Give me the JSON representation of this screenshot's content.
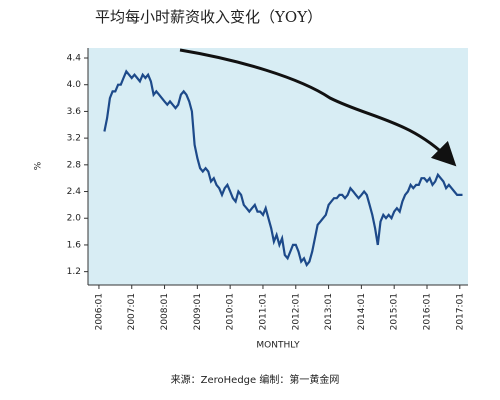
{
  "chart_data": {
    "type": "line",
    "title": "平均每小时薪资收入变化（YOY）",
    "y_label": "%",
    "x_label": "MONTHLY",
    "source": "来源：ZeroHedge    编制：第一黄金网",
    "color": "#1d4a8a",
    "background": "#d8edf4",
    "x": [
      "2006-03",
      "2006-04",
      "2006-05",
      "2006-06",
      "2006-07",
      "2006-08",
      "2006-09",
      "2006-10",
      "2006-11",
      "2006-12",
      "2007-01",
      "2007-02",
      "2007-03",
      "2007-04",
      "2007-05",
      "2007-06",
      "2007-07",
      "2007-08",
      "2007-09",
      "2007-10",
      "2007-11",
      "2007-12",
      "2008-01",
      "2008-02",
      "2008-03",
      "2008-04",
      "2008-05",
      "2008-06",
      "2008-07",
      "2008-08",
      "2008-09",
      "2008-10",
      "2008-11",
      "2008-12",
      "2009-01",
      "2009-02",
      "2009-03",
      "2009-04",
      "2009-05",
      "2009-06",
      "2009-07",
      "2009-08",
      "2009-09",
      "2009-10",
      "2009-11",
      "2009-12",
      "2010-01",
      "2010-02",
      "2010-03",
      "2010-04",
      "2010-05",
      "2010-06",
      "2010-07",
      "2010-08",
      "2010-09",
      "2010-10",
      "2010-11",
      "2010-12",
      "2011-01",
      "2011-02",
      "2011-03",
      "2011-04",
      "2011-05",
      "2011-06",
      "2011-07",
      "2011-08",
      "2011-09",
      "2011-10",
      "2011-11",
      "2011-12",
      "2012-01",
      "2012-02",
      "2012-03",
      "2012-04",
      "2012-05",
      "2012-06",
      "2012-07",
      "2012-08",
      "2012-09",
      "2012-10",
      "2012-11",
      "2012-12",
      "2013-01",
      "2013-02",
      "2013-03",
      "2013-04",
      "2013-05",
      "2013-06",
      "2013-07",
      "2013-08",
      "2013-09",
      "2013-10",
      "2013-11",
      "2013-12",
      "2014-01",
      "2014-02",
      "2014-03",
      "2014-04",
      "2014-05",
      "2014-06",
      "2014-07",
      "2014-08",
      "2014-09",
      "2014-10",
      "2014-11",
      "2014-12",
      "2015-01",
      "2015-02",
      "2015-03",
      "2015-04",
      "2015-05",
      "2015-06",
      "2015-07",
      "2015-08",
      "2015-09",
      "2015-10",
      "2015-11",
      "2015-12",
      "2016-01",
      "2016-02",
      "2016-03",
      "2016-04",
      "2016-05",
      "2016-06",
      "2016-07",
      "2016-08",
      "2016-09",
      "2016-10",
      "2016-11",
      "2016-12",
      "2017-01",
      "2017-02"
    ],
    "values": [
      3.3,
      3.5,
      3.8,
      3.9,
      3.9,
      4.0,
      4.0,
      4.1,
      4.2,
      4.15,
      4.1,
      4.15,
      4.1,
      4.05,
      4.15,
      4.1,
      4.15,
      4.05,
      3.85,
      3.9,
      3.85,
      3.8,
      3.75,
      3.7,
      3.75,
      3.7,
      3.65,
      3.7,
      3.85,
      3.9,
      3.85,
      3.75,
      3.6,
      3.1,
      2.9,
      2.75,
      2.7,
      2.75,
      2.7,
      2.55,
      2.6,
      2.5,
      2.45,
      2.35,
      2.45,
      2.5,
      2.4,
      2.3,
      2.25,
      2.4,
      2.35,
      2.2,
      2.15,
      2.1,
      2.15,
      2.2,
      2.1,
      2.1,
      2.05,
      2.15,
      2.0,
      1.85,
      1.65,
      1.75,
      1.6,
      1.7,
      1.45,
      1.4,
      1.5,
      1.6,
      1.6,
      1.5,
      1.35,
      1.4,
      1.3,
      1.35,
      1.5,
      1.7,
      1.9,
      1.95,
      2.0,
      2.05,
      2.2,
      2.25,
      2.3,
      2.3,
      2.35,
      2.35,
      2.3,
      2.35,
      2.45,
      2.4,
      2.35,
      2.3,
      2.35,
      2.4,
      2.35,
      2.2,
      2.05,
      1.85,
      1.6,
      1.95,
      2.05,
      2.0,
      2.05,
      2.0,
      2.1,
      2.15,
      2.1,
      2.25,
      2.35,
      2.4,
      2.5,
      2.45,
      2.5,
      2.5,
      2.6,
      2.6,
      2.55,
      2.6,
      2.5,
      2.55,
      2.65,
      2.6,
      2.55,
      2.45,
      2.5,
      2.45,
      2.4,
      2.35,
      2.35,
      2.35
    ],
    "xlim": [
      "2005-09",
      "2017-04"
    ],
    "xticks": [
      {
        "value": "2006-01",
        "label": "2006:01"
      },
      {
        "value": "2007-01",
        "label": "2007:01"
      },
      {
        "value": "2008-01",
        "label": "2008:01"
      },
      {
        "value": "2009-01",
        "label": "2009:01"
      },
      {
        "value": "2010-01",
        "label": "2010:01"
      },
      {
        "value": "2011-01",
        "label": "2011:01"
      },
      {
        "value": "2012-01",
        "label": "2012:01"
      },
      {
        "value": "2013-01",
        "label": "2013:01"
      },
      {
        "value": "2014-01",
        "label": "2014:01"
      },
      {
        "value": "2015-01",
        "label": "2015:01"
      },
      {
        "value": "2016-01",
        "label": "2016:01"
      },
      {
        "value": "2017-01",
        "label": "2017:01"
      }
    ],
    "ylim": [
      1.0,
      4.55
    ],
    "yticks": [
      1.2,
      1.6,
      {
        "value": 2,
        "label": "2.0"
      },
      2.4,
      2.8,
      3.2,
      3.6,
      {
        "value": 4,
        "label": "4.0"
      },
      4.4
    ]
  }
}
